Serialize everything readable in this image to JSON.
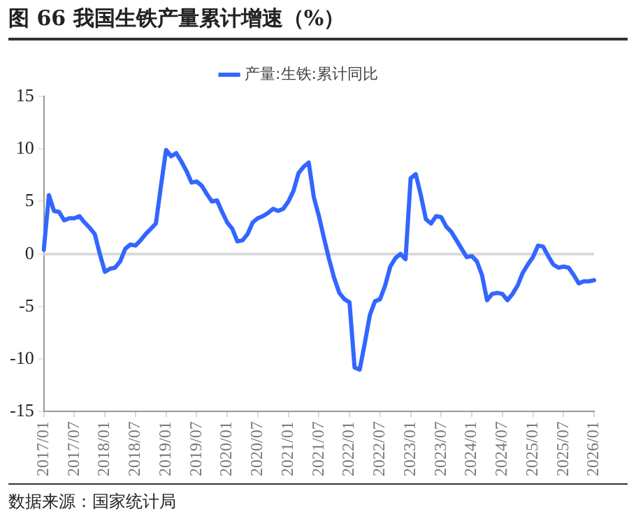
{
  "chart_data": {
    "type": "line",
    "title": "图 66 我国生铁产量累计增速（%）",
    "categories": [
      "2017/01",
      null,
      null,
      null,
      null,
      null,
      "2017/07",
      null,
      null,
      null,
      null,
      null,
      "2018/01",
      null,
      null,
      null,
      null,
      null,
      "2018/07",
      null,
      null,
      null,
      null,
      null,
      "2019/01",
      null,
      null,
      null,
      null,
      null,
      "2019/07",
      null,
      null,
      null,
      null,
      null,
      "2020/01",
      null,
      null,
      null,
      null,
      null,
      "2020/07",
      null,
      null,
      null,
      null,
      null,
      "2021/01",
      null,
      null,
      null,
      null,
      null,
      "2021/07",
      null,
      null,
      null,
      null,
      null,
      "2022/01",
      null,
      null,
      null,
      null,
      null,
      "2022/07",
      null,
      null,
      null,
      null,
      null,
      "2023/01",
      null,
      null,
      null,
      null,
      null,
      "2023/07",
      null,
      null,
      null,
      null,
      null,
      "2024/01",
      null,
      null,
      null,
      null,
      null,
      "2024/07",
      null,
      null,
      null,
      null,
      null,
      "2025/01",
      null,
      null,
      null,
      null,
      null,
      "2025/07",
      null,
      null,
      null,
      null,
      null,
      "2026/01"
    ],
    "series": [
      {
        "name": "产量:生铁:累计同比",
        "color": "#3366ff",
        "values": [
          0.4,
          5.6,
          4.1,
          4.0,
          3.2,
          3.4,
          3.4,
          3.6,
          3.0,
          2.5,
          1.9,
          0.0,
          -1.7,
          -1.4,
          -1.3,
          -0.7,
          0.5,
          0.9,
          0.8,
          1.3,
          1.9,
          2.4,
          2.9,
          6.5,
          9.9,
          9.3,
          9.6,
          8.8,
          7.9,
          6.8,
          6.9,
          6.5,
          5.7,
          5.0,
          5.1,
          4.0,
          3.0,
          2.4,
          1.2,
          1.3,
          1.9,
          3.0,
          3.4,
          3.6,
          3.9,
          4.3,
          4.1,
          4.3,
          5.0,
          6.0,
          7.7,
          8.3,
          8.7,
          5.4,
          3.6,
          1.5,
          -0.5,
          -2.3,
          -3.7,
          -4.3,
          -4.6,
          -10.8,
          -11.0,
          -8.5,
          -5.8,
          -4.5,
          -4.3,
          -3.0,
          -1.2,
          -0.4,
          0.0,
          -0.5,
          7.2,
          7.6,
          5.6,
          3.3,
          2.9,
          3.6,
          3.5,
          2.6,
          2.1,
          1.3,
          0.5,
          -0.3,
          -0.2,
          -0.7,
          -2.0,
          -4.4,
          -3.8,
          -3.7,
          -3.8,
          -4.4,
          -3.8,
          -3.0,
          -1.8,
          -1.0,
          -0.3,
          0.8,
          0.7,
          -0.2,
          -1.0,
          -1.3,
          -1.2,
          -1.3,
          -2.0,
          -2.8,
          -2.6,
          -2.6,
          -2.5
        ]
      }
    ],
    "ylim": [
      -15,
      15
    ],
    "yticks": [
      -15,
      -10,
      -5,
      0,
      5,
      10,
      15
    ],
    "grid": false,
    "ref_lines": [
      {
        "axis": "y",
        "value": 0,
        "color": "#d9d9d9"
      }
    ],
    "legend": "top",
    "marker": "none",
    "line_style": "solid",
    "annotations": [
      "数据来源：国家统计局"
    ]
  }
}
